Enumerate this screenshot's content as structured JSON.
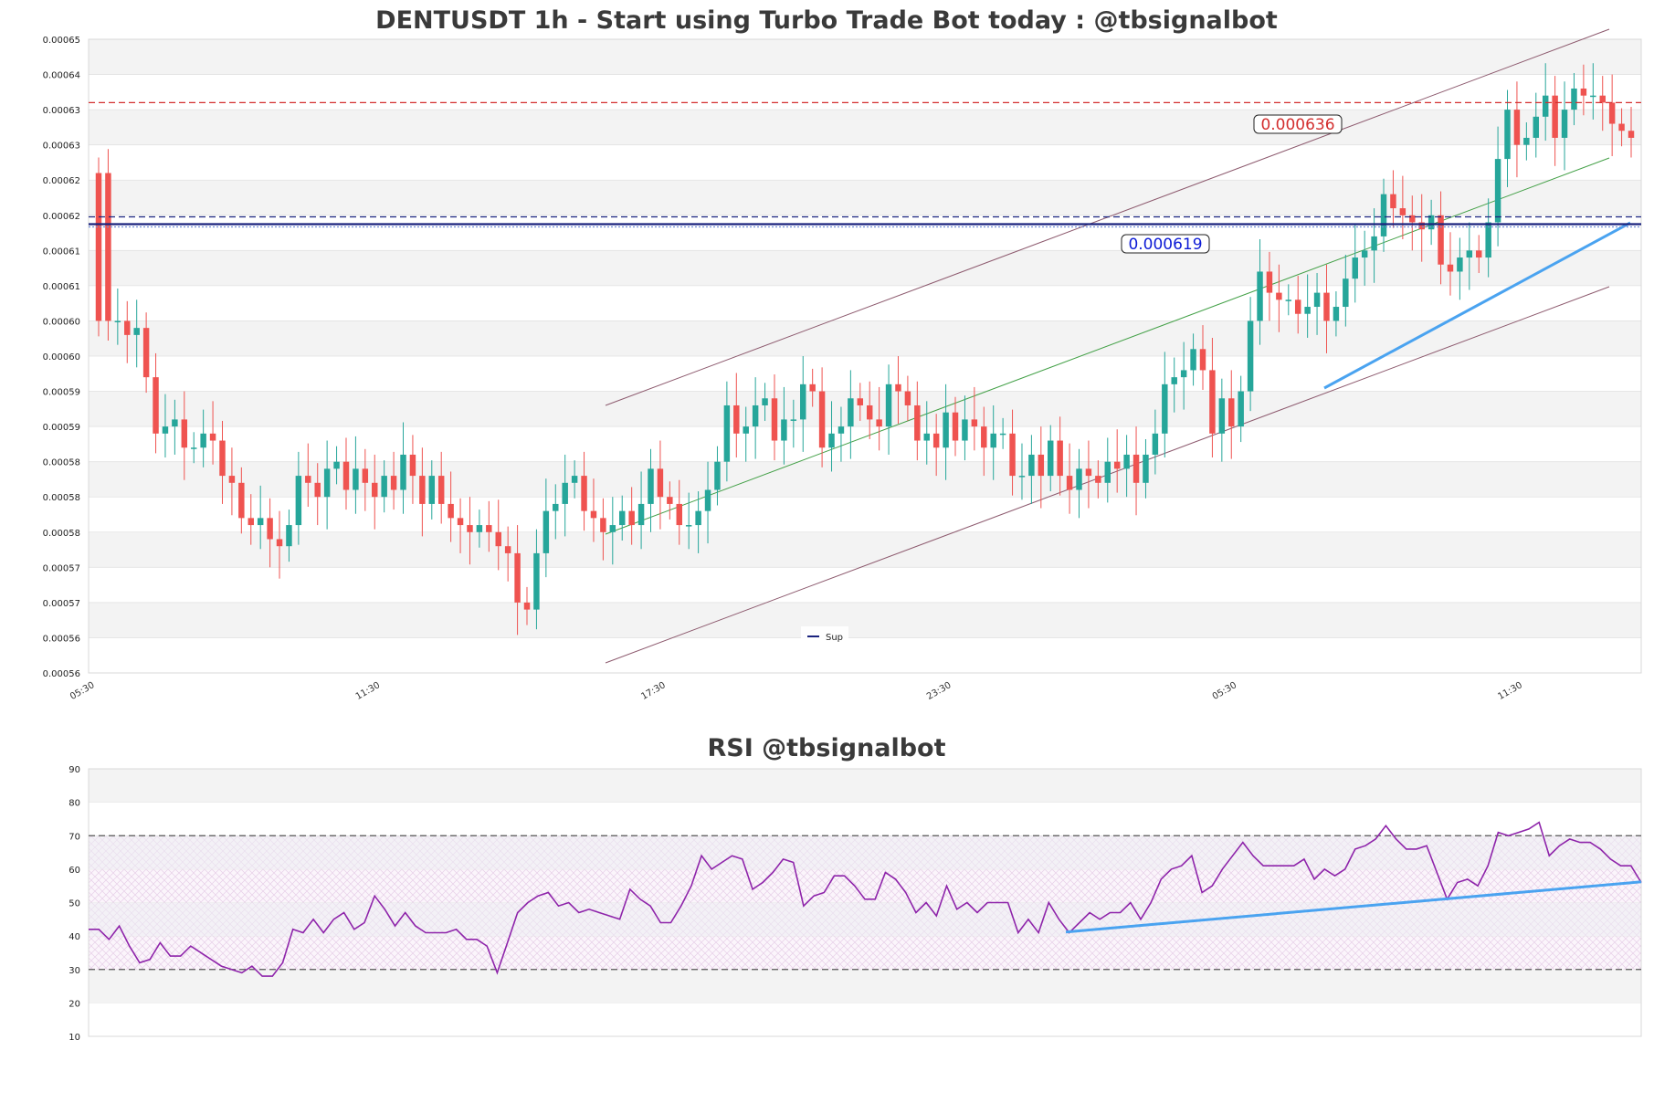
{
  "colors": {
    "up": "#26a69a",
    "down": "#ef5350",
    "resistance": "#d32f2f",
    "support": "#1a237e",
    "support_label": "#0d1bd6",
    "channel": "#8d5a6e",
    "mid_line": "#43a047",
    "trend": "#4aa3f0",
    "rsi": "#8e24aa",
    "band_gray": "#f3f3f3"
  },
  "chart_data": [
    {
      "type": "candlestick",
      "title": "DENTUSDT 1h - Start using Turbo Trade Bot today : @tbsignalbot",
      "ylim": [
        0.000555,
        0.000645
      ],
      "yticks": [
        0.000555,
        0.00056,
        0.000565,
        0.00057,
        0.000575,
        0.00058,
        0.000585,
        0.00059,
        0.000595,
        0.0006,
        0.000605,
        0.00061,
        0.000615,
        0.00062,
        0.000625,
        0.00063,
        0.000635,
        0.00064,
        0.000645
      ],
      "ytick_labels": [
        "0.00056",
        "0.00056",
        "0.00057",
        "0.00057",
        "0.00058",
        "0.00058",
        "0.00058",
        "0.00059",
        "0.00059",
        "0.00060",
        "0.00060",
        "0.00061",
        "0.00061",
        "0.00062",
        "0.00062",
        "0.00063",
        "0.00063",
        "0.00064",
        "0.00065"
      ],
      "xticks": [
        {
          "i": 0,
          "label": "05:30"
        },
        {
          "i": 30,
          "label": "11:30"
        },
        {
          "i": 60,
          "label": "17:30"
        },
        {
          "i": 90,
          "label": "23:30"
        },
        {
          "i": 120,
          "label": "05:30"
        },
        {
          "i": 150,
          "label": "11:30"
        }
      ],
      "closes": [
        0.000626,
        0.000605,
        0.000605,
        0.000603,
        0.000604,
        0.000597,
        0.000589,
        0.00059,
        0.000591,
        0.000587,
        0.000587,
        0.000589,
        0.000588,
        0.000583,
        0.000582,
        0.000577,
        0.000576,
        0.000577,
        0.000574,
        0.000573,
        0.000576,
        0.000583,
        0.000582,
        0.00058,
        0.000584,
        0.000585,
        0.000581,
        0.000584,
        0.000582,
        0.00058,
        0.000583,
        0.000581,
        0.000586,
        0.000583,
        0.000579,
        0.000583,
        0.000579,
        0.000577,
        0.000576,
        0.000575,
        0.000576,
        0.000575,
        0.000573,
        0.000572,
        0.000565,
        0.000564,
        0.000572,
        0.000578,
        0.000579,
        0.000582,
        0.000583,
        0.000578,
        0.000577,
        0.000575,
        0.000576,
        0.000578,
        0.000576,
        0.000579,
        0.000584,
        0.00058,
        0.000579,
        0.000576,
        0.000576,
        0.000578,
        0.000581,
        0.000585,
        0.000593,
        0.000589,
        0.00059,
        0.000593,
        0.000594,
        0.000588,
        0.000591,
        0.000591,
        0.000596,
        0.000595,
        0.000587,
        0.000589,
        0.00059,
        0.000594,
        0.000593,
        0.000591,
        0.00059,
        0.000596,
        0.000595,
        0.000593,
        0.000588,
        0.000589,
        0.000587,
        0.000592,
        0.000588,
        0.000591,
        0.00059,
        0.000587,
        0.000589,
        0.000589,
        0.000583,
        0.000583,
        0.000586,
        0.000583,
        0.000588,
        0.000583,
        0.000581,
        0.000584,
        0.000583,
        0.000582,
        0.000585,
        0.000584,
        0.000586,
        0.000582,
        0.000586,
        0.000589,
        0.000596,
        0.000597,
        0.000598,
        0.000601,
        0.000598,
        0.000589,
        0.000594,
        0.00059,
        0.000595,
        0.000605,
        0.000612,
        0.000609,
        0.000608,
        0.000608,
        0.000606,
        0.000607,
        0.000609,
        0.000605,
        0.000607,
        0.000611,
        0.000614,
        0.000615,
        0.000617,
        0.000623,
        0.000621,
        0.00062,
        0.000619,
        0.000618,
        0.00062,
        0.000613,
        0.000612,
        0.000614,
        0.000615,
        0.000614,
        0.000619,
        0.000628,
        0.000635,
        0.00063,
        0.000631,
        0.000634,
        0.000637,
        0.000631,
        0.000635,
        0.000638,
        0.000637,
        0.000637,
        0.000636,
        0.000633,
        0.000632,
        0.000631
      ],
      "lines": [
        {
          "name": "resistance",
          "y": 0.000636,
          "label": "0.000636"
        },
        {
          "name": "support",
          "y": 0.000619,
          "label": "0.000619"
        }
      ],
      "legend": [
        {
          "name": "Sup",
          "position": "bottom-center"
        }
      ]
    },
    {
      "type": "line",
      "title": "RSI @tbsignalbot",
      "ylim": [
        10,
        90
      ],
      "yticks": [
        10,
        20,
        30,
        40,
        50,
        60,
        70,
        80,
        90
      ],
      "overbought": 70,
      "oversold": 30,
      "series": [
        {
          "values": [
            42,
            42,
            39,
            43,
            37,
            32,
            33,
            38,
            34,
            34,
            37,
            35,
            33,
            31,
            30,
            29,
            31,
            28,
            28,
            32,
            42,
            41,
            45,
            41,
            45,
            47,
            42,
            44,
            52,
            48,
            43,
            47,
            43,
            41,
            41,
            41,
            42,
            39,
            39,
            37,
            29,
            38,
            47,
            50,
            52,
            53,
            49,
            50,
            47,
            48,
            47,
            46,
            45,
            54,
            51,
            49,
            44,
            44,
            49,
            55,
            64,
            60,
            62,
            64,
            63,
            54,
            56,
            59,
            63,
            62,
            49,
            52,
            53,
            58,
            58,
            55,
            51,
            51,
            59,
            57,
            53,
            47,
            50,
            46,
            55,
            48,
            50,
            47,
            50,
            50,
            50,
            41,
            45,
            41,
            50,
            45,
            41,
            44,
            47,
            45,
            47,
            47,
            50,
            45,
            50,
            57,
            60,
            61,
            64,
            53,
            55,
            60,
            64,
            68,
            64,
            61,
            61,
            61,
            61,
            63,
            57,
            60,
            58,
            60,
            66,
            67,
            69,
            73,
            69,
            66,
            66,
            67,
            59,
            51,
            56,
            57,
            55,
            61,
            71,
            70,
            71,
            72,
            74,
            64,
            67,
            69,
            68,
            68,
            66,
            63,
            61,
            61,
            56
          ]
        }
      ]
    }
  ]
}
